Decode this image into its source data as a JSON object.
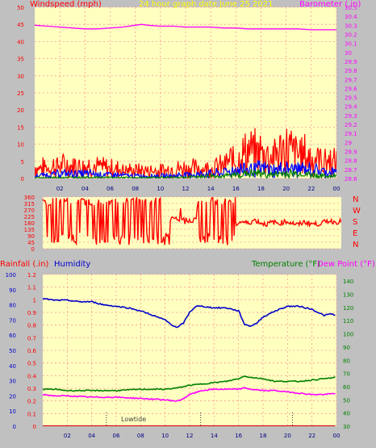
{
  "chart_data": [
    {
      "type": "line",
      "title": "24 hour graph date  June 25 2021",
      "left_label": "Windspeed (mph)",
      "right_label": "Barometer (.in)",
      "x_ticks": [
        "02",
        "04",
        "06",
        "08",
        "10",
        "12",
        "14",
        "16",
        "18",
        "20",
        "22",
        "00"
      ],
      "x_range": [
        0,
        24
      ],
      "ylim": [
        0,
        50
      ],
      "y_ticks": [
        0,
        5,
        10,
        15,
        20,
        25,
        30,
        35,
        40,
        45,
        50
      ],
      "y2lim": [
        28.6,
        30.5
      ],
      "y2_ticks": [
        "28.6",
        "28.7",
        "28.8",
        "28.9",
        "29",
        "29.1",
        "29.2",
        "29.3",
        "29.4",
        "29.5",
        "29.6",
        "29.7",
        "29.8",
        "29.9",
        "30",
        "30.1",
        "30.2",
        "30.3",
        "30.4",
        "30.5"
      ],
      "grid": true,
      "series": [
        {
          "name": "Barometer",
          "axis": "right",
          "color": "#ff00ff",
          "x": [
            0,
            1,
            2,
            3,
            4,
            5,
            6,
            7,
            8,
            8.5,
            9,
            10,
            11,
            12,
            13,
            14,
            15,
            16,
            17,
            18,
            19,
            20,
            21,
            22,
            23,
            24
          ],
          "y": [
            30.3,
            30.29,
            30.28,
            30.27,
            30.26,
            30.26,
            30.27,
            30.28,
            30.3,
            30.31,
            30.3,
            30.29,
            30.29,
            30.28,
            30.28,
            30.28,
            30.27,
            30.27,
            30.26,
            30.26,
            30.26,
            30.26,
            30.26,
            30.25,
            30.25,
            30.25
          ]
        },
        {
          "name": "Gust",
          "axis": "left",
          "color": "#ff0000",
          "x": [
            0,
            2,
            4,
            6,
            8,
            10,
            12,
            14,
            15,
            16,
            17,
            18,
            19,
            20,
            21,
            22,
            23,
            24
          ],
          "y": [
            4,
            5,
            5,
            4,
            3,
            3,
            4,
            4,
            5,
            8,
            10,
            10,
            9,
            11,
            10,
            8,
            7,
            6
          ]
        },
        {
          "name": "Wind avg",
          "axis": "left",
          "color": "#0000ff",
          "x": [
            0,
            2,
            4,
            6,
            8,
            10,
            12,
            14,
            15,
            16,
            17,
            18,
            19,
            20,
            21,
            22,
            23,
            24
          ],
          "y": [
            1,
            2,
            2,
            1.5,
            1,
            1,
            1.5,
            2,
            2.5,
            3.5,
            4,
            4,
            3.5,
            4,
            4,
            3.5,
            3,
            2.5
          ]
        },
        {
          "name": "Wind low",
          "axis": "left",
          "color": "#008000",
          "x": [
            0,
            4,
            8,
            12,
            14,
            15,
            16,
            17,
            18,
            19,
            20,
            21,
            22,
            23,
            24
          ],
          "y": [
            0.3,
            0.5,
            0.3,
            0.5,
            1,
            1,
            1.5,
            2,
            2,
            1.5,
            2,
            2,
            1.5,
            1,
            1
          ]
        }
      ]
    },
    {
      "type": "line",
      "title": "",
      "y_ticks": [
        0,
        45,
        90,
        135,
        180,
        225,
        270,
        315,
        360
      ],
      "ylim": [
        0,
        360
      ],
      "x_range": [
        0,
        24
      ],
      "compass_labels": [
        "N",
        "W",
        "S",
        "E",
        "N"
      ],
      "series": [
        {
          "name": "Wind direction",
          "color": "#ff0000",
          "x": [
            15.5,
            16,
            16.5,
            17,
            17.5,
            18,
            18.5,
            19,
            19.5,
            20,
            20.5,
            21,
            21.5,
            22,
            22.5,
            23,
            23.5,
            24
          ],
          "y": [
            170,
            190,
            175,
            200,
            180,
            170,
            185,
            175,
            190,
            180,
            165,
            185,
            175,
            170,
            180,
            195,
            185,
            190
          ]
        }
      ]
    },
    {
      "type": "line",
      "title": "",
      "left_label_1": "Rainfall (.in)",
      "left_label_2": "Humidity",
      "right_label_1": "Temperature (°F)",
      "right_label_2": "Dew Point (°F)",
      "x_ticks": [
        "02",
        "04",
        "06",
        "08",
        "10",
        "12",
        "14",
        "16",
        "18",
        "20",
        "22",
        "00"
      ],
      "x_range": [
        0,
        24
      ],
      "ylim": [
        0,
        1.2
      ],
      "rain_ticks": [
        "0",
        "0.1",
        "0.2",
        "0.3",
        "0.4",
        "0.5",
        "0.6",
        "0.7",
        "0.8",
        "0.9",
        "1",
        "1.1",
        "1.2"
      ],
      "humidity_lim": [
        0,
        100
      ],
      "humidity_ticks": [
        0,
        10,
        20,
        30,
        40,
        50,
        60,
        70,
        80,
        90,
        100
      ],
      "temp_lim": [
        30,
        145
      ],
      "temp_ticks": [
        30,
        40,
        50,
        60,
        70,
        80,
        90,
        100,
        110,
        120,
        130,
        140
      ],
      "annotation": "Lowtide",
      "grid": true,
      "series": [
        {
          "name": "Humidity",
          "axis": "humidity",
          "color": "#0000cc",
          "x": [
            0,
            1,
            2,
            3,
            4,
            5,
            6,
            7,
            8,
            9,
            10,
            10.5,
            11,
            11.5,
            12,
            12.5,
            13,
            14,
            15,
            16,
            16.5,
            17,
            17.5,
            18,
            19,
            20,
            21,
            22,
            23,
            23.5,
            24
          ],
          "y": [
            84,
            83,
            83,
            82,
            82,
            80,
            79,
            78,
            76,
            73,
            70,
            67,
            65,
            68,
            75,
            79,
            79,
            78,
            78,
            76,
            67,
            66,
            68,
            72,
            76,
            79,
            79,
            77,
            73,
            74,
            73
          ]
        },
        {
          "name": "Temperature",
          "axis": "temp",
          "color": "#008000",
          "x": [
            0,
            1,
            2,
            4,
            6,
            8,
            10,
            11,
            12,
            13,
            14,
            15,
            16,
            16.5,
            17,
            18,
            19,
            20,
            21,
            22,
            23,
            24
          ],
          "y": [
            58,
            58,
            57,
            57,
            57,
            58,
            58,
            59,
            61,
            62,
            63,
            64,
            66,
            68,
            67,
            66,
            64,
            64,
            64,
            65,
            66,
            67
          ]
        },
        {
          "name": "Dew Point",
          "axis": "temp",
          "color": "#ff00ff",
          "x": [
            0,
            1,
            2,
            4,
            6,
            8,
            10,
            11,
            11.5,
            12,
            13,
            14,
            15,
            16,
            16.5,
            17,
            18,
            19,
            20,
            21,
            22,
            23,
            24
          ],
          "y": [
            54,
            53,
            53,
            52,
            52,
            51,
            50,
            49,
            51,
            54,
            57,
            58,
            58,
            58,
            59,
            58,
            57,
            57,
            56,
            55,
            54,
            54,
            55
          ]
        },
        {
          "name": "Rainfall",
          "axis": "rain",
          "color": "#cc0000",
          "x": [
            0,
            24
          ],
          "y": [
            0,
            0
          ]
        }
      ]
    }
  ],
  "colors": {
    "panel_bg": "#ffffc0",
    "frame_bg": "#c0c0c0",
    "grid": "#ff9999",
    "title": "#ffff00"
  }
}
